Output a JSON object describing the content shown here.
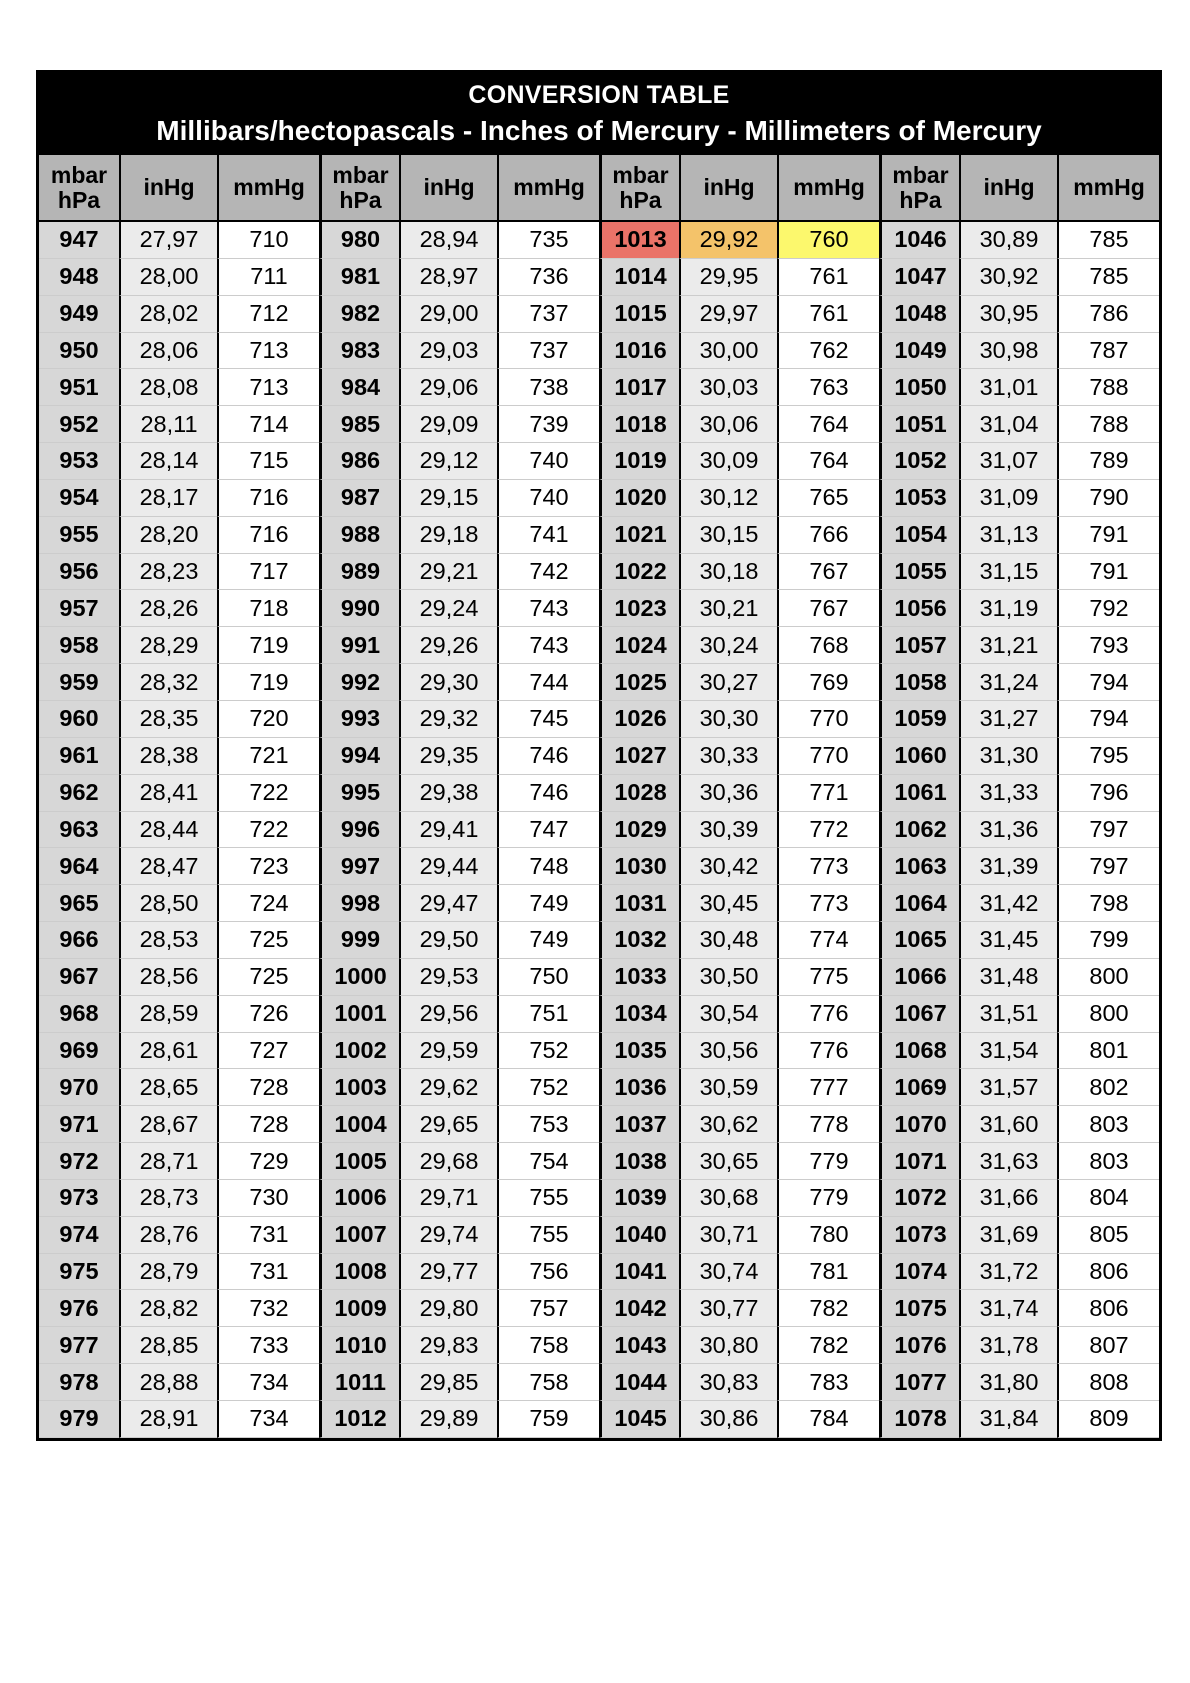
{
  "title": "CONVERSION TABLE",
  "subtitle": "Millibars/hectopascals - Inches of Mercury - Millimeters of Mercury",
  "columns": {
    "mbar_line1": "mbar",
    "mbar_line2": "hPa",
    "inhg": "inHg",
    "mmhg": "mmHg"
  },
  "colors": {
    "band_bg": "#000000",
    "band_text": "#ffffff",
    "header_bg": "#b5b5b5",
    "mbar_bg": "#d7d7d7",
    "inhg_bg": "#ebebeb",
    "mmhg_bg": "#ffffff",
    "highlight_mbar": "#ea7368",
    "highlight_inhg": "#f4c36a",
    "highlight_mmhg": "#fcf86d",
    "row_line": "#cccccc"
  },
  "table": {
    "highlight": {
      "group": 2,
      "row": 0
    },
    "groups": [
      {
        "rows": [
          [
            "947",
            "27,97",
            "710"
          ],
          [
            "948",
            "28,00",
            "711"
          ],
          [
            "949",
            "28,02",
            "712"
          ],
          [
            "950",
            "28,06",
            "713"
          ],
          [
            "951",
            "28,08",
            "713"
          ],
          [
            "952",
            "28,11",
            "714"
          ],
          [
            "953",
            "28,14",
            "715"
          ],
          [
            "954",
            "28,17",
            "716"
          ],
          [
            "955",
            "28,20",
            "716"
          ],
          [
            "956",
            "28,23",
            "717"
          ],
          [
            "957",
            "28,26",
            "718"
          ],
          [
            "958",
            "28,29",
            "719"
          ],
          [
            "959",
            "28,32",
            "719"
          ],
          [
            "960",
            "28,35",
            "720"
          ],
          [
            "961",
            "28,38",
            "721"
          ],
          [
            "962",
            "28,41",
            "722"
          ],
          [
            "963",
            "28,44",
            "722"
          ],
          [
            "964",
            "28,47",
            "723"
          ],
          [
            "965",
            "28,50",
            "724"
          ],
          [
            "966",
            "28,53",
            "725"
          ],
          [
            "967",
            "28,56",
            "725"
          ],
          [
            "968",
            "28,59",
            "726"
          ],
          [
            "969",
            "28,61",
            "727"
          ],
          [
            "970",
            "28,65",
            "728"
          ],
          [
            "971",
            "28,67",
            "728"
          ],
          [
            "972",
            "28,71",
            "729"
          ],
          [
            "973",
            "28,73",
            "730"
          ],
          [
            "974",
            "28,76",
            "731"
          ],
          [
            "975",
            "28,79",
            "731"
          ],
          [
            "976",
            "28,82",
            "732"
          ],
          [
            "977",
            "28,85",
            "733"
          ],
          [
            "978",
            "28,88",
            "734"
          ],
          [
            "979",
            "28,91",
            "734"
          ]
        ]
      },
      {
        "rows": [
          [
            "980",
            "28,94",
            "735"
          ],
          [
            "981",
            "28,97",
            "736"
          ],
          [
            "982",
            "29,00",
            "737"
          ],
          [
            "983",
            "29,03",
            "737"
          ],
          [
            "984",
            "29,06",
            "738"
          ],
          [
            "985",
            "29,09",
            "739"
          ],
          [
            "986",
            "29,12",
            "740"
          ],
          [
            "987",
            "29,15",
            "740"
          ],
          [
            "988",
            "29,18",
            "741"
          ],
          [
            "989",
            "29,21",
            "742"
          ],
          [
            "990",
            "29,24",
            "743"
          ],
          [
            "991",
            "29,26",
            "743"
          ],
          [
            "992",
            "29,30",
            "744"
          ],
          [
            "993",
            "29,32",
            "745"
          ],
          [
            "994",
            "29,35",
            "746"
          ],
          [
            "995",
            "29,38",
            "746"
          ],
          [
            "996",
            "29,41",
            "747"
          ],
          [
            "997",
            "29,44",
            "748"
          ],
          [
            "998",
            "29,47",
            "749"
          ],
          [
            "999",
            "29,50",
            "749"
          ],
          [
            "1000",
            "29,53",
            "750"
          ],
          [
            "1001",
            "29,56",
            "751"
          ],
          [
            "1002",
            "29,59",
            "752"
          ],
          [
            "1003",
            "29,62",
            "752"
          ],
          [
            "1004",
            "29,65",
            "753"
          ],
          [
            "1005",
            "29,68",
            "754"
          ],
          [
            "1006",
            "29,71",
            "755"
          ],
          [
            "1007",
            "29,74",
            "755"
          ],
          [
            "1008",
            "29,77",
            "756"
          ],
          [
            "1009",
            "29,80",
            "757"
          ],
          [
            "1010",
            "29,83",
            "758"
          ],
          [
            "1011",
            "29,85",
            "758"
          ],
          [
            "1012",
            "29,89",
            "759"
          ]
        ]
      },
      {
        "rows": [
          [
            "1013",
            "29,92",
            "760"
          ],
          [
            "1014",
            "29,95",
            "761"
          ],
          [
            "1015",
            "29,97",
            "761"
          ],
          [
            "1016",
            "30,00",
            "762"
          ],
          [
            "1017",
            "30,03",
            "763"
          ],
          [
            "1018",
            "30,06",
            "764"
          ],
          [
            "1019",
            "30,09",
            "764"
          ],
          [
            "1020",
            "30,12",
            "765"
          ],
          [
            "1021",
            "30,15",
            "766"
          ],
          [
            "1022",
            "30,18",
            "767"
          ],
          [
            "1023",
            "30,21",
            "767"
          ],
          [
            "1024",
            "30,24",
            "768"
          ],
          [
            "1025",
            "30,27",
            "769"
          ],
          [
            "1026",
            "30,30",
            "770"
          ],
          [
            "1027",
            "30,33",
            "770"
          ],
          [
            "1028",
            "30,36",
            "771"
          ],
          [
            "1029",
            "30,39",
            "772"
          ],
          [
            "1030",
            "30,42",
            "773"
          ],
          [
            "1031",
            "30,45",
            "773"
          ],
          [
            "1032",
            "30,48",
            "774"
          ],
          [
            "1033",
            "30,50",
            "775"
          ],
          [
            "1034",
            "30,54",
            "776"
          ],
          [
            "1035",
            "30,56",
            "776"
          ],
          [
            "1036",
            "30,59",
            "777"
          ],
          [
            "1037",
            "30,62",
            "778"
          ],
          [
            "1038",
            "30,65",
            "779"
          ],
          [
            "1039",
            "30,68",
            "779"
          ],
          [
            "1040",
            "30,71",
            "780"
          ],
          [
            "1041",
            "30,74",
            "781"
          ],
          [
            "1042",
            "30,77",
            "782"
          ],
          [
            "1043",
            "30,80",
            "782"
          ],
          [
            "1044",
            "30,83",
            "783"
          ],
          [
            "1045",
            "30,86",
            "784"
          ]
        ]
      },
      {
        "rows": [
          [
            "1046",
            "30,89",
            "785"
          ],
          [
            "1047",
            "30,92",
            "785"
          ],
          [
            "1048",
            "30,95",
            "786"
          ],
          [
            "1049",
            "30,98",
            "787"
          ],
          [
            "1050",
            "31,01",
            "788"
          ],
          [
            "1051",
            "31,04",
            "788"
          ],
          [
            "1052",
            "31,07",
            "789"
          ],
          [
            "1053",
            "31,09",
            "790"
          ],
          [
            "1054",
            "31,13",
            "791"
          ],
          [
            "1055",
            "31,15",
            "791"
          ],
          [
            "1056",
            "31,19",
            "792"
          ],
          [
            "1057",
            "31,21",
            "793"
          ],
          [
            "1058",
            "31,24",
            "794"
          ],
          [
            "1059",
            "31,27",
            "794"
          ],
          [
            "1060",
            "31,30",
            "795"
          ],
          [
            "1061",
            "31,33",
            "796"
          ],
          [
            "1062",
            "31,36",
            "797"
          ],
          [
            "1063",
            "31,39",
            "797"
          ],
          [
            "1064",
            "31,42",
            "798"
          ],
          [
            "1065",
            "31,45",
            "799"
          ],
          [
            "1066",
            "31,48",
            "800"
          ],
          [
            "1067",
            "31,51",
            "800"
          ],
          [
            "1068",
            "31,54",
            "801"
          ],
          [
            "1069",
            "31,57",
            "802"
          ],
          [
            "1070",
            "31,60",
            "803"
          ],
          [
            "1071",
            "31,63",
            "803"
          ],
          [
            "1072",
            "31,66",
            "804"
          ],
          [
            "1073",
            "31,69",
            "805"
          ],
          [
            "1074",
            "31,72",
            "806"
          ],
          [
            "1075",
            "31,74",
            "806"
          ],
          [
            "1076",
            "31,78",
            "807"
          ],
          [
            "1077",
            "31,80",
            "808"
          ],
          [
            "1078",
            "31,84",
            "809"
          ]
        ]
      }
    ]
  }
}
